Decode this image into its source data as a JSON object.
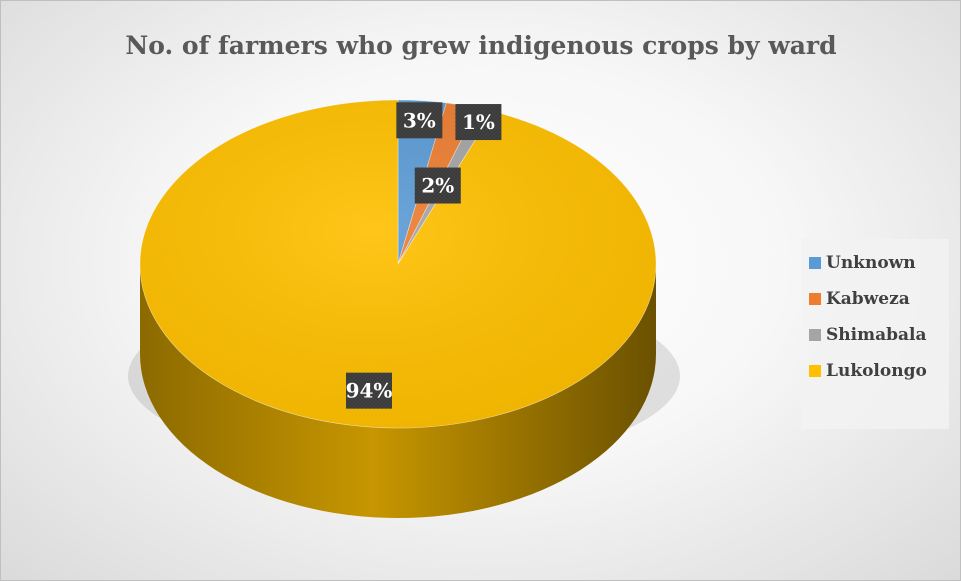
{
  "chart_data": {
    "type": "pie",
    "title": "No. of farmers who grew indigenous crops by ward",
    "categories": [
      "Unknown",
      "Kabweza",
      "Shimabala",
      "Lukolongo"
    ],
    "values": [
      3,
      2,
      1,
      94
    ],
    "labels": [
      "3%",
      "2%",
      "1%",
      "94%"
    ],
    "colors": [
      "#5B9BD5",
      "#ED7D31",
      "#A5A5A5",
      "#FFC000"
    ],
    "label_box_color": "#404040",
    "legend_position": "right",
    "style": "3d"
  }
}
